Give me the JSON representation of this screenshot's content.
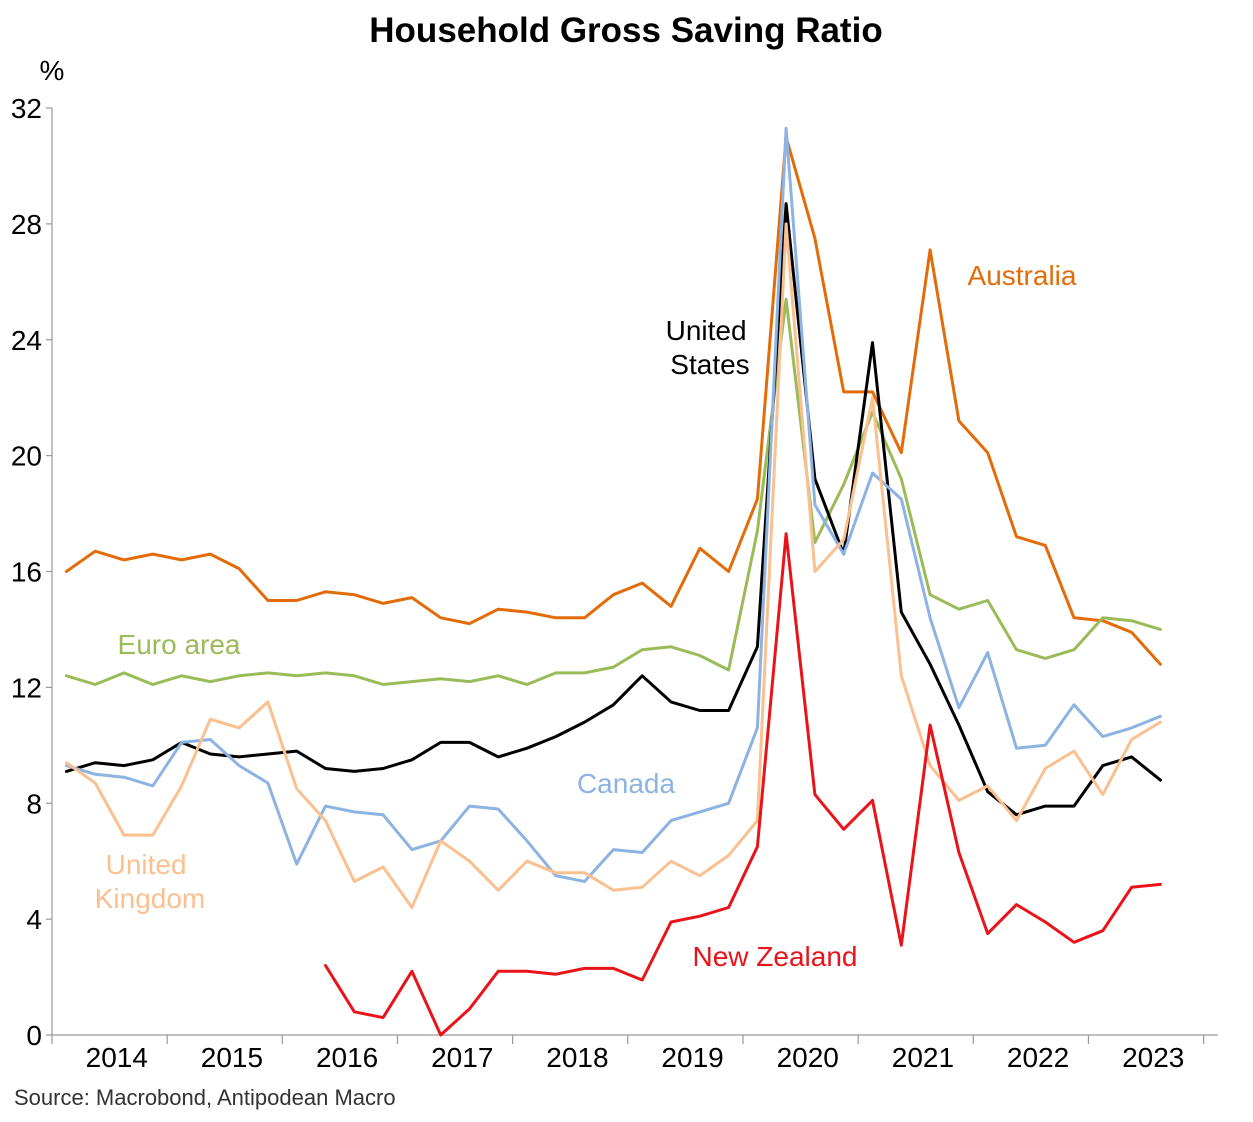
{
  "chart_data": {
    "type": "line",
    "title": "Household Gross Saving Ratio",
    "ylabel": "%",
    "xlabel": "",
    "ylim": [
      0,
      32
    ],
    "yticks": [
      0,
      4,
      8,
      12,
      16,
      20,
      24,
      28,
      32
    ],
    "xlim": [
      2013.5,
      2023.625
    ],
    "year_ticks": [
      "2014",
      "2015",
      "2016",
      "2017",
      "2018",
      "2019",
      "2020",
      "2021",
      "2022",
      "2023"
    ],
    "grid": false,
    "legend": "inline labels",
    "source": "Source: Macrobond, Antipodean Macro",
    "series": [
      {
        "name": "Australia",
        "label_lines": [
          "Australia"
        ],
        "color": "#E36C0A",
        "start": 2013.625,
        "step": 0.25,
        "values": [
          16.0,
          16.7,
          16.4,
          16.6,
          16.4,
          16.6,
          16.1,
          15.0,
          15.0,
          15.3,
          15.2,
          14.9,
          15.1,
          14.4,
          14.2,
          14.7,
          14.6,
          14.4,
          14.4,
          15.2,
          15.6,
          14.8,
          16.8,
          16.0,
          18.5,
          31.0,
          27.5,
          22.2,
          22.2,
          20.1,
          27.1,
          21.2,
          20.1,
          17.2,
          16.9,
          14.4,
          14.3,
          13.9,
          12.8
        ]
      },
      {
        "name": "Euro area",
        "label_lines": [
          "Euro area"
        ],
        "color": "#9BBB59",
        "start": 2013.625,
        "step": 0.25,
        "values": [
          12.4,
          12.1,
          12.5,
          12.1,
          12.4,
          12.2,
          12.4,
          12.5,
          12.4,
          12.5,
          12.4,
          12.1,
          12.2,
          12.3,
          12.2,
          12.4,
          12.1,
          12.5,
          12.5,
          12.7,
          13.3,
          13.4,
          13.1,
          12.6,
          17.4,
          25.4,
          17.0,
          19.0,
          21.5,
          19.2,
          15.2,
          14.7,
          15.0,
          13.3,
          13.0,
          13.3,
          14.4,
          14.3,
          14.0
        ]
      },
      {
        "name": "United States",
        "label_lines": [
          "United",
          "States"
        ],
        "color": "#000000",
        "start": 2013.625,
        "step": 0.25,
        "values": [
          9.1,
          9.4,
          9.3,
          9.5,
          10.1,
          9.7,
          9.6,
          9.7,
          9.8,
          9.2,
          9.1,
          9.2,
          9.5,
          10.1,
          10.1,
          9.6,
          9.9,
          10.3,
          10.8,
          11.4,
          12.4,
          11.5,
          11.2,
          11.2,
          13.4,
          28.7,
          19.2,
          16.6,
          23.9,
          14.6,
          12.8,
          10.7,
          8.4,
          7.6,
          7.9,
          7.9,
          9.3,
          9.6,
          8.8
        ]
      },
      {
        "name": "Canada",
        "label_lines": [
          "Canada"
        ],
        "color": "#8DB3E2",
        "start": 2013.625,
        "step": 0.25,
        "values": [
          9.3,
          9.0,
          8.9,
          8.6,
          10.1,
          10.2,
          9.3,
          8.7,
          5.9,
          7.9,
          7.7,
          7.6,
          6.4,
          6.7,
          7.9,
          7.8,
          6.7,
          5.5,
          5.3,
          6.4,
          6.3,
          7.4,
          7.7,
          8.0,
          10.6,
          31.3,
          18.3,
          16.6,
          19.4,
          18.5,
          14.4,
          11.3,
          13.2,
          9.9,
          10.0,
          11.4,
          10.3,
          10.6,
          11.0
        ]
      },
      {
        "name": "United Kingdom",
        "label_lines": [
          "United",
          "Kingdom"
        ],
        "color": "#FAC090",
        "start": 2013.625,
        "step": 0.25,
        "values": [
          9.4,
          8.7,
          6.9,
          6.9,
          8.6,
          10.9,
          10.6,
          11.5,
          8.5,
          7.4,
          5.3,
          5.8,
          4.4,
          6.7,
          6.0,
          5.0,
          6.0,
          5.6,
          5.6,
          5.0,
          5.1,
          6.0,
          5.5,
          6.2,
          7.4,
          28.0,
          16.0,
          17.1,
          22.0,
          12.4,
          9.3,
          8.1,
          8.6,
          7.4,
          9.2,
          9.8,
          8.3,
          10.2,
          10.8
        ]
      },
      {
        "name": "New Zealand",
        "label_lines": [
          "New Zealand"
        ],
        "color": "#E8141A",
        "start": 2015.875,
        "step": 0.25,
        "values": [
          2.4,
          0.8,
          0.6,
          2.2,
          0.0,
          0.9,
          2.2,
          2.2,
          2.1,
          2.3,
          2.3,
          1.9,
          3.9,
          4.1,
          4.4,
          6.5,
          17.3,
          8.3,
          7.1,
          8.1,
          3.1,
          10.7,
          6.3,
          3.5,
          4.5,
          3.9,
          3.2,
          3.6,
          5.1,
          5.2
        ]
      }
    ]
  }
}
